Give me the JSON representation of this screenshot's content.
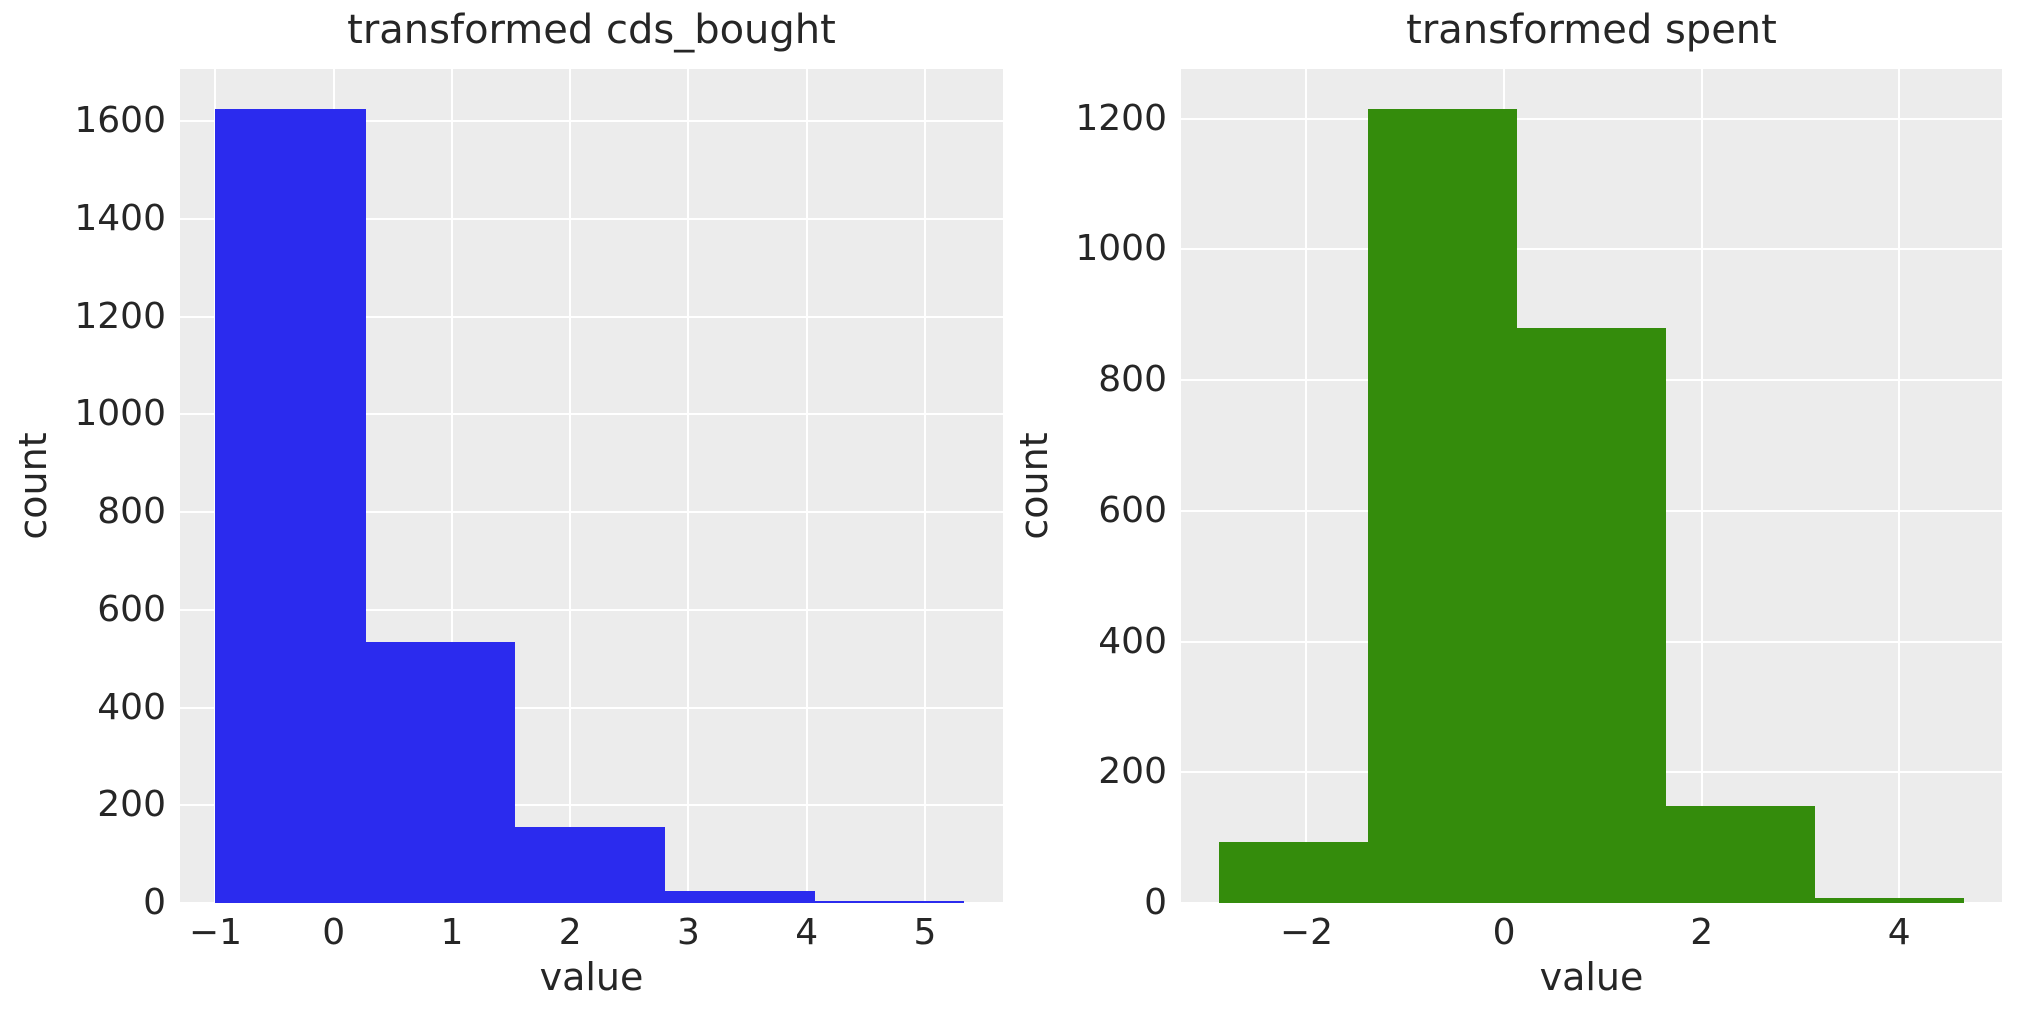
{
  "figure": {
    "background": "#ffffff",
    "panel_background": "#ececec",
    "grid_color": "#ffffff",
    "text_color": "#262626"
  },
  "chart_data": [
    {
      "type": "histogram",
      "title": "transformed cds_bought",
      "xlabel": "value",
      "ylabel": "count",
      "bar_color": "#2b2bee",
      "bin_edges": [
        -1.0,
        0.27,
        1.53,
        2.8,
        4.07,
        5.33
      ],
      "counts": [
        1625,
        535,
        155,
        25,
        4
      ],
      "xticks": [
        -1,
        0,
        1,
        2,
        3,
        4,
        5
      ],
      "xtick_labels": [
        "−1",
        "0",
        "1",
        "2",
        "3",
        "4",
        "5"
      ],
      "yticks": [
        0,
        200,
        400,
        600,
        800,
        1000,
        1200,
        1400,
        1600
      ],
      "ytick_labels": [
        "0",
        "200",
        "400",
        "600",
        "800",
        "1000",
        "1200",
        "1400",
        "1600"
      ],
      "xlim": [
        -1.3,
        5.66
      ],
      "ylim": [
        0,
        1707
      ],
      "grid": true,
      "legend": false
    },
    {
      "type": "histogram",
      "title": "transformed spent",
      "xlabel": "value",
      "ylabel": "count",
      "bar_color": "#348c0c",
      "bin_edges": [
        -2.89,
        -1.38,
        0.13,
        1.64,
        3.15,
        4.66
      ],
      "counts": [
        93,
        1215,
        880,
        148,
        8
      ],
      "xticks": [
        -2,
        0,
        2,
        4
      ],
      "xtick_labels": [
        "−2",
        "0",
        "2",
        "4"
      ],
      "yticks": [
        0,
        200,
        400,
        600,
        800,
        1000,
        1200
      ],
      "ytick_labels": [
        "0",
        "200",
        "400",
        "600",
        "800",
        "1000",
        "1200"
      ],
      "xlim": [
        -3.27,
        5.04
      ],
      "ylim": [
        0,
        1276
      ],
      "grid": true,
      "legend": false
    }
  ]
}
